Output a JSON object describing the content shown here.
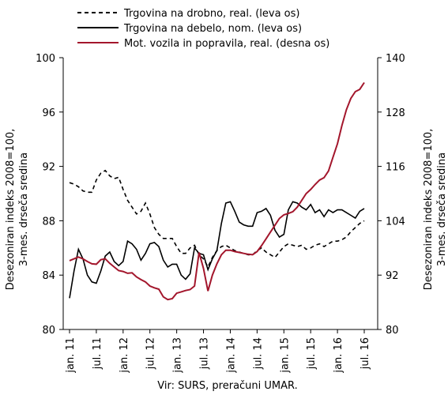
{
  "chart_data": {
    "type": "line",
    "categories": [
      "jan. 11",
      null,
      null,
      null,
      null,
      null,
      "jul. 11",
      null,
      null,
      null,
      null,
      null,
      "jan. 12",
      null,
      null,
      null,
      null,
      null,
      "jul. 12",
      null,
      null,
      null,
      null,
      null,
      "jan. 13",
      null,
      null,
      null,
      null,
      null,
      "jul. 13",
      null,
      null,
      null,
      null,
      null,
      "jan. 14",
      null,
      null,
      null,
      null,
      null,
      "jul. 14",
      null,
      null,
      null,
      null,
      null,
      "jan. 15",
      null,
      null,
      null,
      null,
      null,
      "jul. 15",
      null,
      null,
      null,
      null,
      null,
      "jan. 16",
      null,
      null,
      null,
      null,
      null,
      "jul. 16"
    ],
    "series": [
      {
        "name": "Trgovina na drobno, real. (leva os)",
        "color": "#000000",
        "dash": true,
        "values": [
          90.8,
          90.7,
          90.5,
          90.2,
          90.1,
          90.1,
          91.0,
          91.5,
          91.7,
          91.3,
          91.1,
          91.2,
          90.3,
          89.5,
          89.0,
          88.5,
          88.7,
          89.3,
          88.5,
          87.5,
          87.0,
          86.7,
          86.7,
          86.7,
          86.1,
          85.6,
          85.6,
          86.0,
          86.2,
          85.5,
          85.2,
          84.6,
          85.3,
          85.8,
          86.1,
          86.2,
          86.0,
          85.8,
          85.7,
          85.6,
          85.5,
          85.5,
          85.8,
          86.0,
          85.7,
          85.5,
          85.3,
          85.7,
          86.1,
          86.3,
          86.2,
          86.1,
          86.2,
          85.9,
          86.0,
          86.2,
          86.3,
          86.1,
          86.3,
          86.5,
          86.5,
          86.6,
          86.8,
          87.2,
          87.5,
          87.8,
          88.0
        ]
      },
      {
        "name": "Trgovina na debelo, nom. (leva os)",
        "color": "#000000",
        "dash": false,
        "values": [
          82.3,
          84.3,
          85.9,
          85.2,
          84.0,
          83.5,
          83.4,
          84.3,
          85.4,
          85.7,
          85.0,
          84.7,
          85.0,
          86.5,
          86.3,
          85.9,
          85.1,
          85.6,
          86.3,
          86.4,
          86.1,
          85.1,
          84.6,
          84.8,
          84.8,
          84.0,
          83.7,
          84.1,
          86.0,
          85.6,
          85.5,
          84.4,
          85.2,
          85.8,
          87.8,
          89.3,
          89.4,
          88.7,
          87.9,
          87.7,
          87.6,
          87.6,
          88.6,
          88.7,
          88.9,
          88.4,
          87.3,
          86.8,
          87.0,
          88.8,
          89.4,
          89.3,
          89.0,
          88.8,
          89.2,
          88.6,
          88.8,
          88.3,
          88.8,
          88.6,
          88.8,
          88.8,
          88.6,
          88.4,
          88.2,
          88.7,
          88.9
        ]
      },
      {
        "name": "Mot. vozila in popravila, real. (desna os)",
        "color": "#a3162c",
        "dash": false,
        "axis": "y2",
        "values": [
          95.2,
          95.6,
          96.0,
          95.6,
          95.0,
          94.5,
          94.4,
          95.4,
          95.6,
          94.6,
          93.8,
          93.0,
          92.8,
          92.4,
          92.5,
          91.6,
          91.0,
          90.5,
          89.6,
          89.2,
          88.9,
          87.2,
          86.6,
          86.8,
          88.0,
          88.3,
          88.6,
          88.8,
          89.6,
          97.0,
          93.5,
          88.5,
          92.0,
          94.5,
          96.5,
          97.5,
          97.5,
          97.2,
          97.0,
          96.8,
          96.6,
          96.5,
          97.2,
          98.5,
          100.0,
          101.5,
          103.0,
          104.5,
          105.3,
          105.6,
          106.0,
          107.0,
          108.5,
          110.0,
          110.9,
          112.0,
          113.0,
          113.5,
          115.0,
          118.0,
          121.0,
          125.0,
          128.5,
          131.0,
          132.5,
          133.0,
          134.5
        ]
      }
    ],
    "ylabel": "Desezoniran indeks 2008=100, 3-mes. drseča sredina",
    "y2label": "Desezoniran indeks 2008=100, 3-mes. drseča sredina",
    "ylim": [
      80,
      100
    ],
    "yticks": [
      80,
      84,
      88,
      92,
      96,
      100
    ],
    "y2lim": [
      80,
      140
    ],
    "y2ticks": [
      80,
      92,
      104,
      116,
      128,
      140
    ],
    "grid": false,
    "source": "Vir: SURS, preračuni UMAR."
  }
}
